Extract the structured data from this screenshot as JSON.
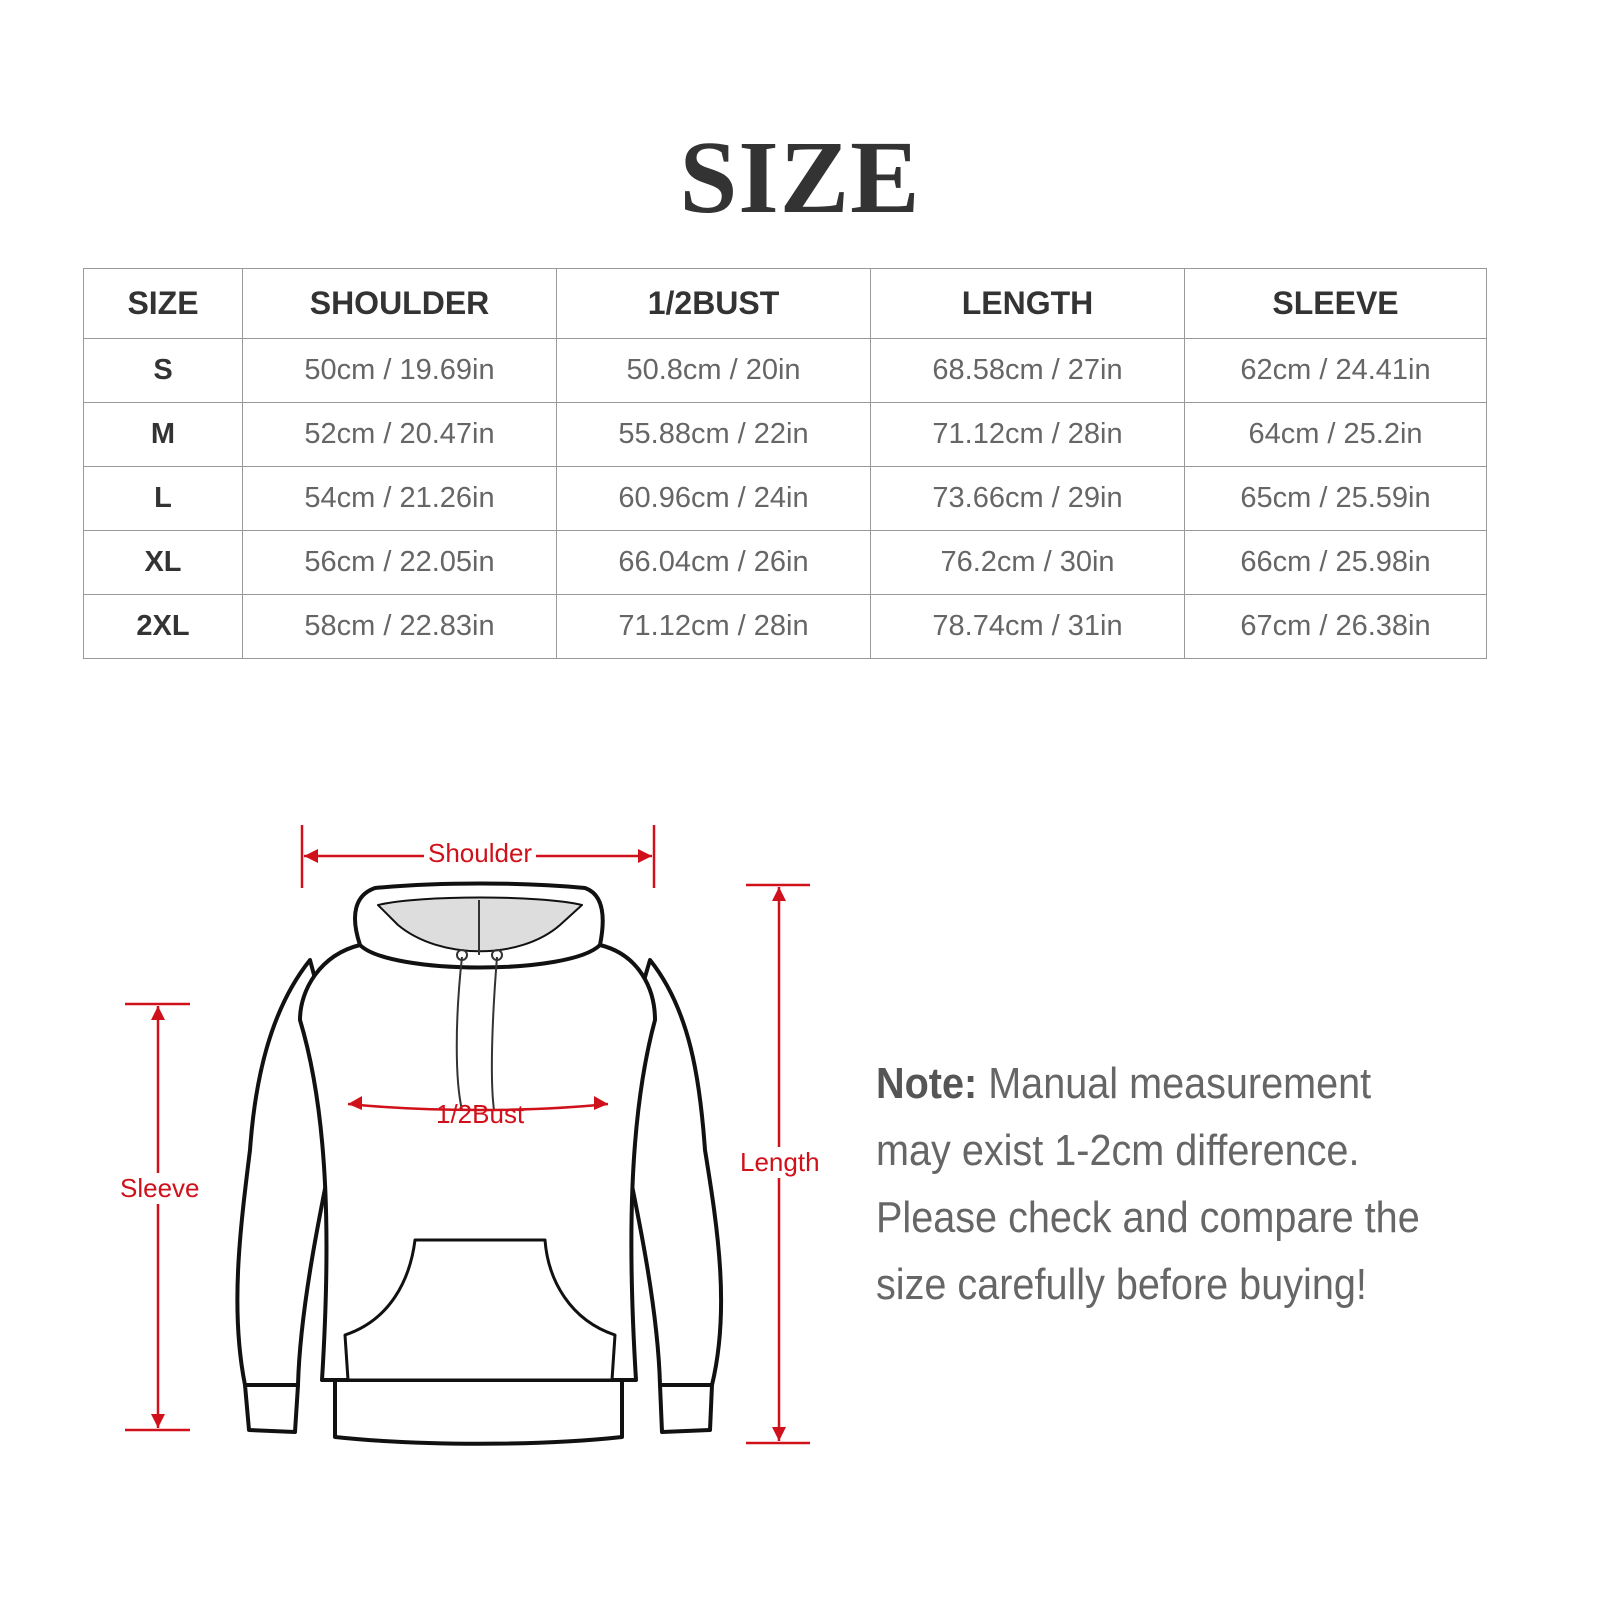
{
  "title": "SIZE",
  "table": {
    "headers": [
      "SIZE",
      "SHOULDER",
      "1/2BUST",
      "LENGTH",
      "SLEEVE"
    ],
    "rows": [
      [
        "S",
        "50cm / 19.69in",
        "50.8cm / 20in",
        "68.58cm / 27in",
        "62cm / 24.41in"
      ],
      [
        "M",
        "52cm / 20.47in",
        "55.88cm / 22in",
        "71.12cm / 28in",
        "64cm / 25.2in"
      ],
      [
        "L",
        "54cm / 21.26in",
        "60.96cm / 24in",
        "73.66cm / 29in",
        "65cm / 25.59in"
      ],
      [
        "XL",
        "56cm / 22.05in",
        "66.04cm / 26in",
        "76.2cm / 30in",
        "66cm / 25.98in"
      ],
      [
        "2XL",
        "58cm / 22.83in",
        "71.12cm / 28in",
        "78.74cm / 31in",
        "67cm / 26.38in"
      ]
    ]
  },
  "diagram": {
    "shoulder": "Shoulder",
    "bust": "1/2Bust",
    "length": "Length",
    "sleeve": "Sleeve",
    "accent_color": "#d0111b"
  },
  "note": {
    "label": "Note:",
    "text": " Manual measurement may exist 1-2cm difference. Please check and compare the size carefully before buying!"
  }
}
